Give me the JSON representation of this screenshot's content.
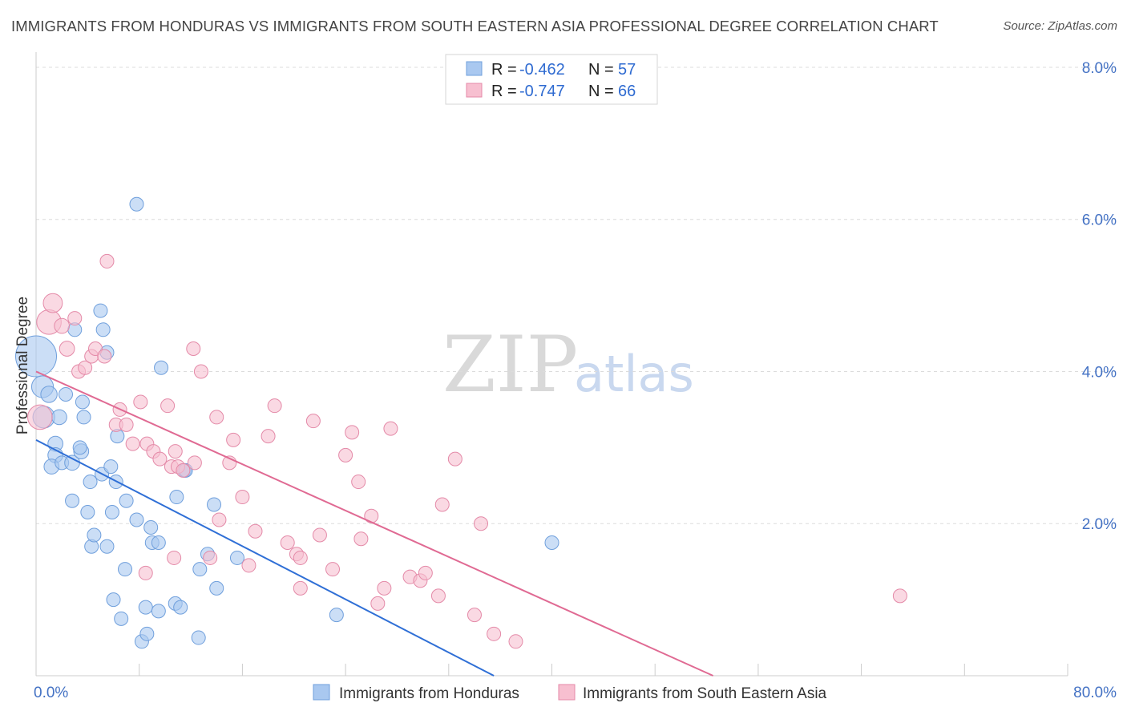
{
  "title": "IMMIGRANTS FROM HONDURAS VS IMMIGRANTS FROM SOUTH EASTERN ASIA PROFESSIONAL DEGREE CORRELATION CHART",
  "source": "Source: ZipAtlas.com",
  "watermark": {
    "zip": "ZIP",
    "atlas": "atlas"
  },
  "legend_top": {
    "rows": [
      {
        "r_label": "R =",
        "r_value": "-0.462",
        "n_label": "N =",
        "n_value": "57",
        "color": "#a9c8f0",
        "stroke": "#6f9fdc"
      },
      {
        "r_label": "R =",
        "r_value": "-0.747",
        "n_label": "N =",
        "n_value": "66",
        "color": "#f7bfd0",
        "stroke": "#e48aa8"
      }
    ]
  },
  "chart_data": {
    "type": "scatter",
    "title": "IMMIGRANTS FROM HONDURAS VS IMMIGRANTS FROM SOUTH EASTERN ASIA PROFESSIONAL DEGREE CORRELATION CHART",
    "xlabel": "",
    "ylabel": "Professional Degree",
    "xlim": [
      0,
      80
    ],
    "ylim": [
      0,
      8.2
    ],
    "x_tick_labels": [
      "0.0%",
      "80.0%"
    ],
    "y_tick_labels": [
      "2.0%",
      "4.0%",
      "6.0%",
      "8.0%"
    ],
    "y_ticks": [
      2,
      4,
      6,
      8
    ],
    "grid": true,
    "legend_position": "bottom-center",
    "series": [
      {
        "name": "Immigrants from Honduras",
        "color": "#a9c8f0",
        "stroke": "#6f9fdc",
        "line_color": "#2f6fd6",
        "trend": [
          [
            0,
            3.1
          ],
          [
            35.5,
            0
          ]
        ],
        "points": [
          [
            0.0,
            4.2,
            30
          ],
          [
            0.5,
            3.8,
            16
          ],
          [
            0.6,
            3.4,
            16
          ],
          [
            1.0,
            3.7,
            12
          ],
          [
            1.8,
            3.4,
            11
          ],
          [
            1.5,
            3.05,
            11
          ],
          [
            1.5,
            2.9,
            11
          ],
          [
            1.2,
            2.75,
            11
          ],
          [
            2.0,
            2.8,
            10
          ],
          [
            2.3,
            3.7,
            10
          ],
          [
            2.8,
            2.8,
            11
          ],
          [
            3.0,
            4.55,
            10
          ],
          [
            3.5,
            2.95,
            11
          ],
          [
            3.4,
            3.0,
            10
          ],
          [
            3.6,
            3.6,
            10
          ],
          [
            3.7,
            3.4,
            10
          ],
          [
            2.8,
            2.3,
            10
          ],
          [
            4.0,
            2.15,
            10
          ],
          [
            4.2,
            2.55,
            10
          ],
          [
            4.3,
            1.7,
            10
          ],
          [
            4.5,
            1.85,
            10
          ],
          [
            5.5,
            1.7,
            10
          ],
          [
            5.1,
            2.65,
            10
          ],
          [
            5.0,
            4.8,
            10
          ],
          [
            5.2,
            4.55,
            10
          ],
          [
            5.5,
            4.25,
            10
          ],
          [
            5.8,
            2.75,
            10
          ],
          [
            5.9,
            2.15,
            10
          ],
          [
            6.2,
            2.55,
            10
          ],
          [
            6.3,
            3.15,
            10
          ],
          [
            6.9,
            1.4,
            10
          ],
          [
            7.0,
            2.3,
            10
          ],
          [
            7.8,
            2.05,
            10
          ],
          [
            6.0,
            1.0,
            10
          ],
          [
            6.6,
            0.75,
            10
          ],
          [
            7.8,
            6.2,
            10
          ],
          [
            8.5,
            0.9,
            10
          ],
          [
            8.2,
            0.45,
            10
          ],
          [
            8.6,
            0.55,
            10
          ],
          [
            8.9,
            1.95,
            10
          ],
          [
            9.0,
            1.75,
            10
          ],
          [
            9.5,
            1.75,
            10
          ],
          [
            9.5,
            0.85,
            10
          ],
          [
            9.7,
            4.05,
            10
          ],
          [
            10.8,
            0.95,
            10
          ],
          [
            10.9,
            2.35,
            10
          ],
          [
            11.2,
            0.9,
            10
          ],
          [
            11.5,
            2.7,
            10
          ],
          [
            12.6,
            0.5,
            10
          ],
          [
            12.7,
            1.4,
            10
          ],
          [
            13.3,
            1.6,
            10
          ],
          [
            13.8,
            2.25,
            10
          ],
          [
            14.0,
            1.15,
            10
          ],
          [
            15.6,
            1.55,
            10
          ],
          [
            23.3,
            0.8,
            10
          ],
          [
            40.0,
            1.75,
            10
          ],
          [
            11.6,
            2.7,
            10
          ]
        ]
      },
      {
        "name": "Immigrants from South Eastern Asia",
        "color": "#f7bfd0",
        "stroke": "#e48aa8",
        "line_color": "#e06a93",
        "trend": [
          [
            0,
            4.0
          ],
          [
            52.5,
            0
          ]
        ],
        "points": [
          [
            0.3,
            3.4,
            18
          ],
          [
            1.0,
            4.65,
            18
          ],
          [
            1.3,
            4.9,
            14
          ],
          [
            2.0,
            4.6,
            11
          ],
          [
            2.4,
            4.3,
            11
          ],
          [
            3.0,
            4.7,
            10
          ],
          [
            3.3,
            4.0,
            10
          ],
          [
            3.8,
            4.05,
            10
          ],
          [
            4.3,
            4.2,
            10
          ],
          [
            4.6,
            4.3,
            10
          ],
          [
            5.3,
            4.2,
            10
          ],
          [
            5.5,
            5.45,
            10
          ],
          [
            6.2,
            3.3,
            10
          ],
          [
            6.5,
            3.5,
            10
          ],
          [
            7.0,
            3.3,
            10
          ],
          [
            7.5,
            3.05,
            10
          ],
          [
            8.1,
            3.6,
            10
          ],
          [
            8.6,
            3.05,
            10
          ],
          [
            9.1,
            2.95,
            10
          ],
          [
            9.6,
            2.85,
            10
          ],
          [
            10.2,
            3.55,
            10
          ],
          [
            10.5,
            2.75,
            10
          ],
          [
            10.8,
            2.95,
            10
          ],
          [
            11.0,
            2.75,
            10
          ],
          [
            11.4,
            2.7,
            10
          ],
          [
            12.2,
            4.3,
            10
          ],
          [
            12.8,
            4.0,
            10
          ],
          [
            13.5,
            1.55,
            10
          ],
          [
            14.0,
            3.4,
            10
          ],
          [
            14.2,
            2.05,
            10
          ],
          [
            15.0,
            2.8,
            10
          ],
          [
            15.3,
            3.1,
            10
          ],
          [
            16.0,
            2.35,
            10
          ],
          [
            16.5,
            1.45,
            10
          ],
          [
            17.0,
            1.9,
            10
          ],
          [
            18.0,
            3.15,
            10
          ],
          [
            18.5,
            3.55,
            10
          ],
          [
            19.5,
            1.75,
            10
          ],
          [
            20.2,
            1.6,
            10
          ],
          [
            20.5,
            1.55,
            10
          ],
          [
            21.5,
            3.35,
            10
          ],
          [
            22.0,
            1.85,
            10
          ],
          [
            23.0,
            1.4,
            10
          ],
          [
            24.0,
            2.9,
            10
          ],
          [
            24.5,
            3.2,
            10
          ],
          [
            25.0,
            2.55,
            10
          ],
          [
            25.2,
            1.8,
            10
          ],
          [
            26.0,
            2.1,
            10
          ],
          [
            26.5,
            0.95,
            10
          ],
          [
            27.0,
            1.15,
            10
          ],
          [
            27.5,
            3.25,
            10
          ],
          [
            29.0,
            1.3,
            10
          ],
          [
            29.8,
            1.25,
            10
          ],
          [
            30.2,
            1.35,
            10
          ],
          [
            31.2,
            1.05,
            10
          ],
          [
            31.5,
            2.25,
            10
          ],
          [
            32.5,
            2.85,
            10
          ],
          [
            34.0,
            0.8,
            10
          ],
          [
            34.5,
            2.0,
            10
          ],
          [
            35.5,
            0.55,
            10
          ],
          [
            37.2,
            0.45,
            10
          ],
          [
            67.0,
            1.05,
            10
          ],
          [
            20.5,
            1.15,
            10
          ],
          [
            10.7,
            1.55,
            10
          ],
          [
            8.5,
            1.35,
            10
          ],
          [
            12.3,
            2.8,
            10
          ]
        ]
      }
    ]
  }
}
